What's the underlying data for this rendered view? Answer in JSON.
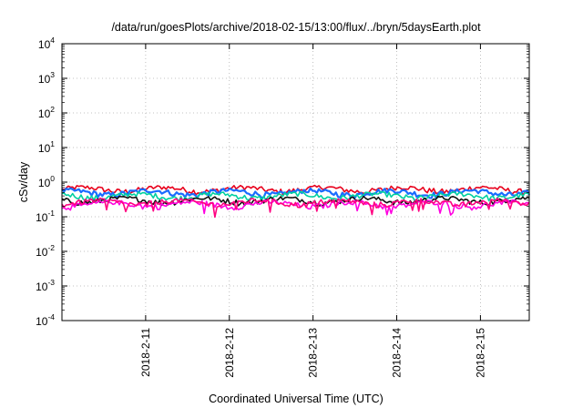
{
  "chart_data": {
    "type": "line",
    "title": "/data/run/goesPlots/archive/2018-02-15/13:00/flux/../bryn/5daysEarth.plot",
    "xlabel": "Coordinated Universal Time (UTC)",
    "ylabel": "cSv/day",
    "y_scale": "log",
    "ylim_exponent": [
      -4,
      4
    ],
    "y_ticks": [
      {
        "base": "10",
        "exp": "-4"
      },
      {
        "base": "10",
        "exp": "-3"
      },
      {
        "base": "10",
        "exp": "-2"
      },
      {
        "base": "10",
        "exp": "-1"
      },
      {
        "base": "10",
        "exp": "0"
      },
      {
        "base": "10",
        "exp": "1"
      },
      {
        "base": "10",
        "exp": "2"
      },
      {
        "base": "10",
        "exp": "3"
      },
      {
        "base": "10",
        "exp": "4"
      }
    ],
    "x_range_days": [
      "2018-02-10 00:00",
      "2018-02-15 14:00"
    ],
    "x_ticks": [
      "2018-2-11",
      "2018-2-12",
      "2018-2-13",
      "2018-2-14",
      "2018-2-15"
    ],
    "grid": true,
    "series": [
      {
        "color": "#e8001c",
        "level": 0.62
      },
      {
        "color": "#1a6cff",
        "level": 0.5
      },
      {
        "color": "#00d0a0",
        "level": 0.4
      },
      {
        "color": "#111111",
        "level": 0.3
      },
      {
        "color": "#ff00e0",
        "level": 0.23
      },
      {
        "color": "#ff0080",
        "level": 0.26
      }
    ]
  }
}
